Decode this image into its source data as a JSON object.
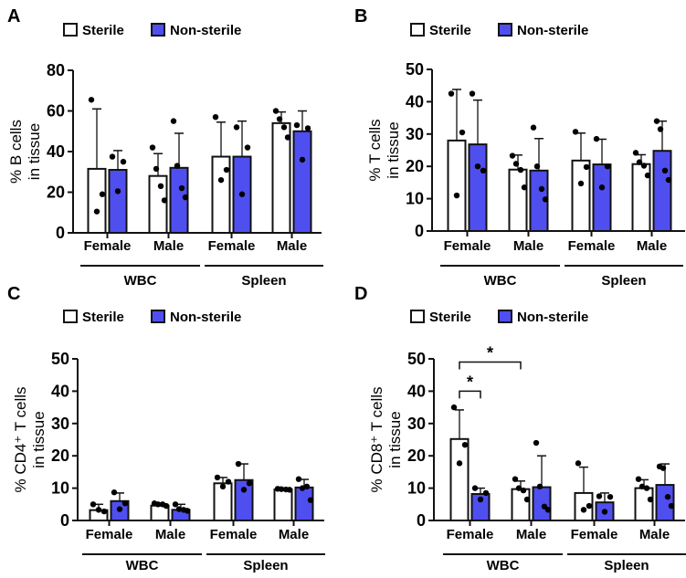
{
  "colors": {
    "sterile": "#ffffff",
    "nonsterile": "#4f4ff0",
    "stroke": "#111111"
  },
  "chart_data": [
    {
      "panel": "A",
      "type": "bar",
      "legend": [
        "Sterile",
        "Non-sterile"
      ],
      "ylabel": [
        "% B cells",
        "in tissue"
      ],
      "ylim": [
        0,
        80
      ],
      "yticks": [
        0,
        20,
        40,
        60,
        80
      ],
      "categories": [
        "Female",
        "Male",
        "Female",
        "Male"
      ],
      "groups": [
        "WBC",
        "Spleen"
      ],
      "bars": [
        {
          "mean": 31.5,
          "err": 61,
          "points": [
            65.5,
            19,
            10.5
          ]
        },
        {
          "mean": 31,
          "err": 40.5,
          "points": [
            37.5,
            35,
            20.5
          ]
        },
        {
          "mean": 28,
          "err": 39,
          "points": [
            42,
            31.5,
            23,
            16
          ]
        },
        {
          "mean": 32,
          "err": 49,
          "points": [
            55,
            33,
            22,
            17.5
          ]
        },
        {
          "mean": 37.5,
          "err": 54.5,
          "points": [
            57,
            31,
            26
          ]
        },
        {
          "mean": 37.5,
          "err": 55,
          "points": [
            52,
            42,
            19
          ]
        },
        {
          "mean": 54,
          "err": 59.5,
          "points": [
            60,
            56,
            52,
            47
          ]
        },
        {
          "mean": 50,
          "err": 60,
          "points": [
            53,
            51.5,
            36
          ]
        }
      ],
      "significance": []
    },
    {
      "panel": "B",
      "type": "bar",
      "legend": [
        "Sterile",
        "Non-sterile"
      ],
      "ylabel": [
        "% T cells",
        "in tissue"
      ],
      "ylim": [
        0,
        50
      ],
      "yticks": [
        0,
        10,
        20,
        30,
        40,
        50
      ],
      "categories": [
        "Female",
        "Male",
        "Female",
        "Male"
      ],
      "groups": [
        "WBC",
        "Spleen"
      ],
      "bars": [
        {
          "mean": 28,
          "err": 43.8,
          "points": [
            42.5,
            30.5,
            11
          ]
        },
        {
          "mean": 26.8,
          "err": 40.5,
          "points": [
            42.5,
            18.7,
            20
          ]
        },
        {
          "mean": 19,
          "err": 23.5,
          "points": [
            23.3,
            20.8,
            18.9,
            13.5
          ]
        },
        {
          "mean": 18.7,
          "err": 28.6,
          "points": [
            32,
            20,
            13,
            9.8
          ]
        },
        {
          "mean": 21.8,
          "err": 30.3,
          "points": [
            30.7,
            19.8,
            14.7
          ]
        },
        {
          "mean": 20.6,
          "err": 28.4,
          "points": [
            28.5,
            20,
            13.5
          ]
        },
        {
          "mean": 20.7,
          "err": 23.6,
          "points": [
            24.2,
            21.3,
            20.2,
            17.2
          ]
        },
        {
          "mean": 24.8,
          "err": 34,
          "points": [
            34,
            31.5,
            18.7,
            15.8
          ]
        }
      ],
      "significance": []
    },
    {
      "panel": "C",
      "type": "bar",
      "legend": [
        "Sterile",
        "Non-sterile"
      ],
      "ylabel": [
        "% CD4⁺ T cells",
        "in tissue"
      ],
      "ylim": [
        0,
        50
      ],
      "yticks": [
        0,
        10,
        20,
        30,
        40,
        50
      ],
      "categories": [
        "Female",
        "Male",
        "Female",
        "Male"
      ],
      "groups": [
        "WBC",
        "Spleen"
      ],
      "bars": [
        {
          "mean": 3.2,
          "err": 5,
          "points": [
            5,
            2.8,
            3.3
          ]
        },
        {
          "mean": 6,
          "err": 8.5,
          "points": [
            8.7,
            5.3,
            3.5
          ]
        },
        {
          "mean": 4.6,
          "err": 5.2,
          "points": [
            5.3,
            5,
            5,
            4.5
          ]
        },
        {
          "mean": 3.3,
          "err": 5,
          "points": [
            5,
            3.5,
            3.3,
            3
          ]
        },
        {
          "mean": 11.5,
          "err": 13.3,
          "points": [
            13.3,
            12,
            10.5
          ]
        },
        {
          "mean": 12.5,
          "err": 17.5,
          "points": [
            17.5,
            11.5,
            9.5
          ]
        },
        {
          "mean": 9.6,
          "err": 10,
          "points": [
            9.8,
            9.7,
            9.6,
            9.5
          ]
        },
        {
          "mean": 10.2,
          "err": 12.7,
          "points": [
            12.8,
            10,
            10.5,
            6.3
          ]
        }
      ],
      "significance": []
    },
    {
      "panel": "D",
      "type": "bar",
      "legend": [
        "Sterile",
        "Non-sterile"
      ],
      "ylabel": [
        "% CD8⁺ T cells",
        "in tissue"
      ],
      "ylim": [
        0,
        50
      ],
      "yticks": [
        0,
        10,
        20,
        30,
        40,
        50
      ],
      "categories": [
        "Female",
        "Male",
        "Female",
        "Male"
      ],
      "groups": [
        "WBC",
        "Spleen"
      ],
      "bars": [
        {
          "mean": 25.2,
          "err": 34.2,
          "points": [
            35,
            23.4,
            17.7
          ]
        },
        {
          "mean": 8.2,
          "err": 10,
          "points": [
            10,
            8.5,
            6.5
          ]
        },
        {
          "mean": 9.7,
          "err": 12.2,
          "points": [
            12.8,
            10,
            9.3,
            6.5
          ]
        },
        {
          "mean": 10.3,
          "err": 20,
          "points": [
            24,
            10.5,
            4.3,
            3.3
          ]
        },
        {
          "mean": 8.5,
          "err": 16.5,
          "points": [
            17.7,
            4.5,
            3.3
          ]
        },
        {
          "mean": 5.6,
          "err": 8.5,
          "points": [
            7.5,
            7.3,
            2.7
          ]
        },
        {
          "mean": 10,
          "err": 12.6,
          "points": [
            12.8,
            10.5,
            10,
            6.5
          ]
        },
        {
          "mean": 11,
          "err": 17.5,
          "points": [
            16.7,
            16.2,
            7.3,
            4.5
          ]
        }
      ],
      "significance": [
        {
          "from": 0,
          "to": 1,
          "level": 40,
          "label": "*"
        },
        {
          "from": 0,
          "to": 2,
          "level": 49,
          "label": "*"
        }
      ]
    }
  ]
}
